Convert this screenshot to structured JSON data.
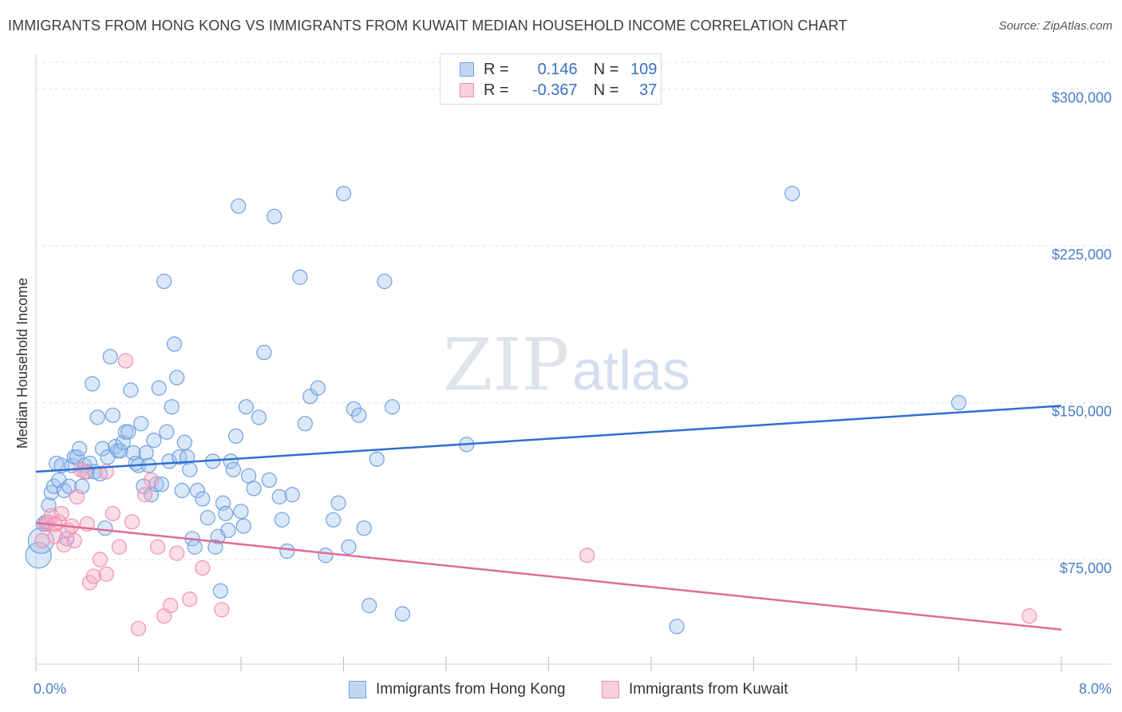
{
  "header": {
    "title": "IMMIGRANTS FROM HONG KONG VS IMMIGRANTS FROM KUWAIT MEDIAN HOUSEHOLD INCOME CORRELATION CHART",
    "source": "Source: ZipAtlas.com"
  },
  "watermark": {
    "zip": "ZIP",
    "atlas": "atlas"
  },
  "legend": {
    "rows": [
      {
        "r_label": "R =",
        "r_value": "0.146",
        "n_label": "N =",
        "n_value": "109"
      },
      {
        "r_label": "R =",
        "r_value": "-0.367",
        "n_label": "N =",
        "n_value": "37"
      }
    ]
  },
  "chart_data": {
    "type": "scatter",
    "ylabel": "Median Household Income",
    "xlim": [
      0,
      8
    ],
    "ylim": [
      25000,
      312000
    ],
    "x_tick_labels": [
      "0.0%",
      "8.0%"
    ],
    "y_ticks": [
      {
        "value": 300000,
        "label": "$300,000"
      },
      {
        "value": 225000,
        "label": "$225,000"
      },
      {
        "value": 150000,
        "label": "$150,000"
      },
      {
        "value": 75000,
        "label": "$75,000"
      }
    ],
    "colors": {
      "hong_kong": "#6fa1e0",
      "kuwait": "#f08fb0",
      "hong_kong_line": "#2f6fd1",
      "kuwait_line": "#e06a9a"
    },
    "series": [
      {
        "name": "Immigrants from Hong Kong",
        "trend": {
          "x": [
            0,
            8
          ],
          "y": [
            117000,
            148500
          ]
        },
        "points": [
          [
            0.02,
            77000
          ],
          [
            0.04,
            84000
          ],
          [
            0.06,
            92000
          ],
          [
            0.08,
            93000
          ],
          [
            0.1,
            101000
          ],
          [
            0.12,
            107000
          ],
          [
            0.14,
            110000
          ],
          [
            0.16,
            121000
          ],
          [
            0.18,
            113000
          ],
          [
            0.2,
            120000
          ],
          [
            0.22,
            108000
          ],
          [
            0.24,
            85000
          ],
          [
            0.26,
            110000
          ],
          [
            0.28,
            120000
          ],
          [
            0.3,
            124000
          ],
          [
            0.32,
            124000
          ],
          [
            0.34,
            128000
          ],
          [
            0.36,
            110000
          ],
          [
            0.38,
            120000
          ],
          [
            0.4,
            117000
          ],
          [
            0.42,
            121000
          ],
          [
            0.44,
            159000
          ],
          [
            0.46,
            117000
          ],
          [
            0.48,
            143000
          ],
          [
            0.5,
            116000
          ],
          [
            0.52,
            128000
          ],
          [
            0.54,
            90000
          ],
          [
            0.56,
            124000
          ],
          [
            0.58,
            172000
          ],
          [
            0.6,
            144000
          ],
          [
            0.62,
            129000
          ],
          [
            0.64,
            127000
          ],
          [
            0.66,
            127000
          ],
          [
            0.68,
            131000
          ],
          [
            0.7,
            136000
          ],
          [
            0.72,
            136000
          ],
          [
            0.74,
            156000
          ],
          [
            0.76,
            126000
          ],
          [
            0.78,
            121000
          ],
          [
            0.8,
            120000
          ],
          [
            0.82,
            140000
          ],
          [
            0.84,
            110000
          ],
          [
            0.86,
            126000
          ],
          [
            0.88,
            120000
          ],
          [
            0.9,
            106000
          ],
          [
            0.92,
            132000
          ],
          [
            0.94,
            111000
          ],
          [
            0.96,
            157000
          ],
          [
            0.98,
            111000
          ],
          [
            1.0,
            208000
          ],
          [
            1.02,
            136000
          ],
          [
            1.04,
            122000
          ],
          [
            1.06,
            148000
          ],
          [
            1.08,
            178000
          ],
          [
            1.1,
            162000
          ],
          [
            1.12,
            124000
          ],
          [
            1.14,
            108000
          ],
          [
            1.16,
            131000
          ],
          [
            1.18,
            124000
          ],
          [
            1.2,
            118000
          ],
          [
            1.22,
            85000
          ],
          [
            1.24,
            81000
          ],
          [
            1.26,
            108000
          ],
          [
            1.3,
            104000
          ],
          [
            1.34,
            95000
          ],
          [
            1.38,
            122000
          ],
          [
            1.4,
            81000
          ],
          [
            1.42,
            86000
          ],
          [
            1.44,
            60000
          ],
          [
            1.46,
            102000
          ],
          [
            1.48,
            97000
          ],
          [
            1.5,
            89000
          ],
          [
            1.52,
            122000
          ],
          [
            1.54,
            118000
          ],
          [
            1.56,
            134000
          ],
          [
            1.58,
            244000
          ],
          [
            1.6,
            98000
          ],
          [
            1.62,
            91000
          ],
          [
            1.64,
            148000
          ],
          [
            1.66,
            115000
          ],
          [
            1.7,
            109000
          ],
          [
            1.74,
            143000
          ],
          [
            1.78,
            174000
          ],
          [
            1.82,
            113000
          ],
          [
            1.86,
            239000
          ],
          [
            1.9,
            105000
          ],
          [
            1.92,
            94000
          ],
          [
            1.96,
            79000
          ],
          [
            2.0,
            106000
          ],
          [
            2.06,
            210000
          ],
          [
            2.1,
            140000
          ],
          [
            2.14,
            153000
          ],
          [
            2.2,
            157000
          ],
          [
            2.26,
            77000
          ],
          [
            2.32,
            94000
          ],
          [
            2.36,
            102000
          ],
          [
            2.4,
            250000
          ],
          [
            2.44,
            81000
          ],
          [
            2.48,
            147000
          ],
          [
            2.52,
            144000
          ],
          [
            2.56,
            90000
          ],
          [
            2.6,
            53000
          ],
          [
            2.66,
            123000
          ],
          [
            2.72,
            208000
          ],
          [
            2.78,
            148000
          ],
          [
            2.86,
            49000
          ],
          [
            3.36,
            130000
          ],
          [
            5.0,
            43000
          ],
          [
            5.9,
            250000
          ],
          [
            7.2,
            150000
          ]
        ]
      },
      {
        "name": "Immigrants from Kuwait",
        "trend": {
          "x": [
            0,
            8
          ],
          "y": [
            92500,
            41500
          ]
        },
        "points": [
          [
            0.05,
            84000
          ],
          [
            0.08,
            92000
          ],
          [
            0.1,
            93000
          ],
          [
            0.12,
            96000
          ],
          [
            0.15,
            86000
          ],
          [
            0.18,
            93000
          ],
          [
            0.2,
            97000
          ],
          [
            0.22,
            82000
          ],
          [
            0.25,
            89000
          ],
          [
            0.28,
            91000
          ],
          [
            0.32,
            105000
          ],
          [
            0.35,
            118000
          ],
          [
            0.38,
            117000
          ],
          [
            0.42,
            64000
          ],
          [
            0.45,
            67000
          ],
          [
            0.5,
            75000
          ],
          [
            0.55,
            68000
          ],
          [
            0.6,
            97000
          ],
          [
            0.65,
            81000
          ],
          [
            0.7,
            170000
          ],
          [
            0.75,
            93000
          ],
          [
            0.8,
            42000
          ],
          [
            0.85,
            106000
          ],
          [
            0.9,
            113000
          ],
          [
            0.95,
            81000
          ],
          [
            1.0,
            48000
          ],
          [
            1.05,
            53000
          ],
          [
            1.1,
            78000
          ],
          [
            1.2,
            56000
          ],
          [
            1.3,
            71000
          ],
          [
            1.45,
            51000
          ],
          [
            0.4,
            92000
          ],
          [
            0.3,
            84000
          ],
          [
            0.55,
            117000
          ],
          [
            0.15,
            92000
          ],
          [
            4.3,
            77000
          ],
          [
            7.75,
            48000
          ]
        ]
      }
    ]
  },
  "bottom_legend": [
    {
      "label": "Immigrants from Hong Kong"
    },
    {
      "label": "Immigrants from Kuwait"
    }
  ]
}
